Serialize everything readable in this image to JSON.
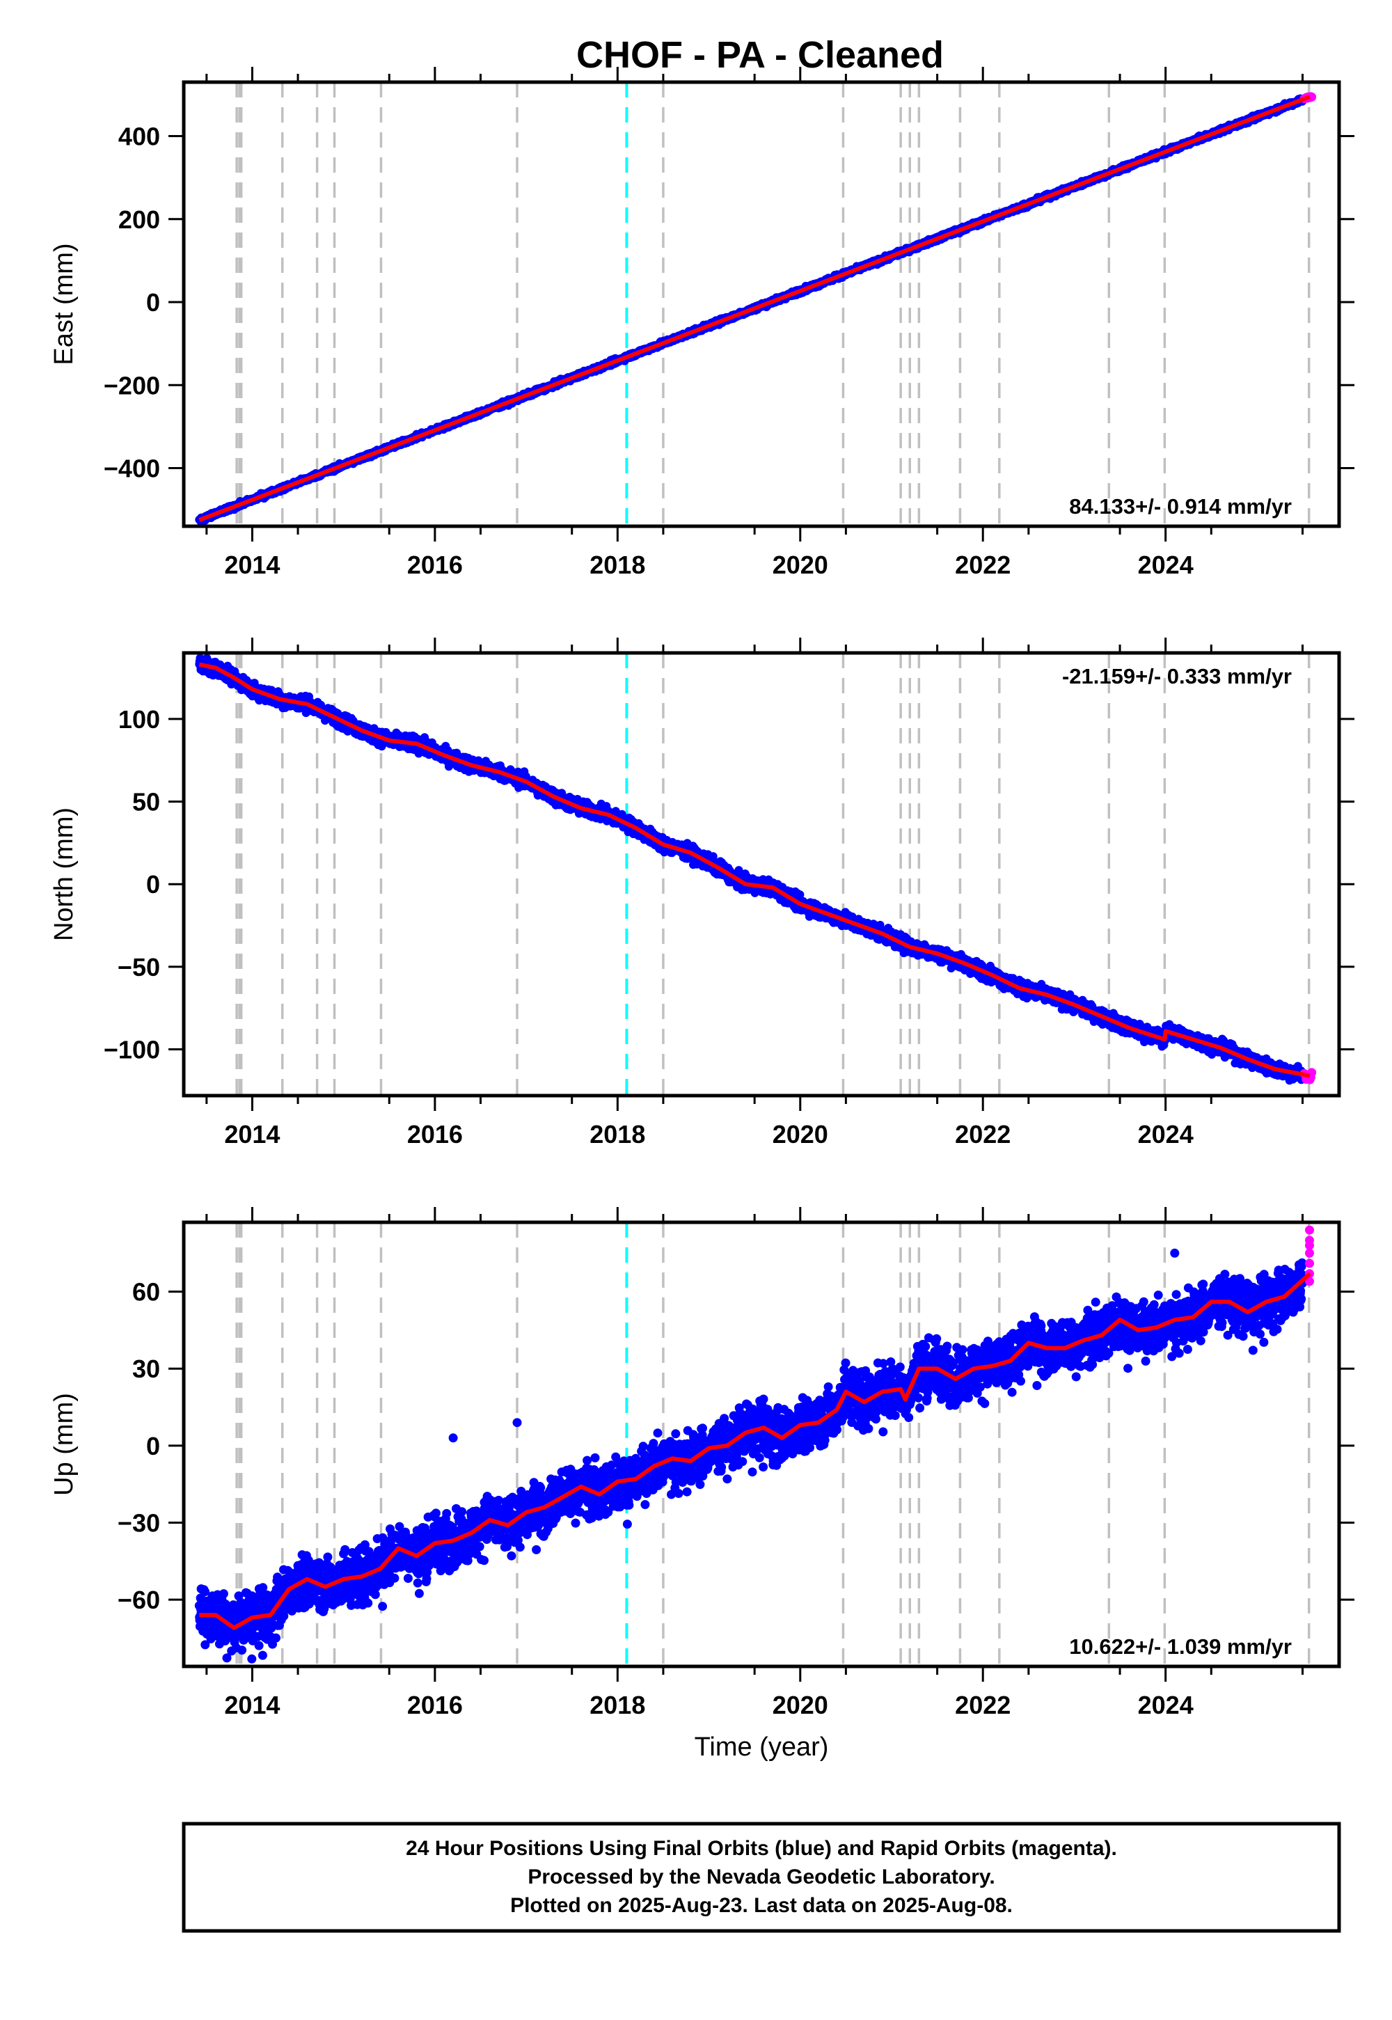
{
  "title": "CHOF  - PA - Cleaned",
  "footer": {
    "lines": [
      "24 Hour Positions Using Final Orbits (blue) and Rapid Orbits (magenta).",
      "Processed by the Nevada Geodetic Laboratory.",
      "Plotted on 2025-Aug-23. Last data on 2025-Aug-08."
    ]
  },
  "colors": {
    "final_orbits": "#0000ff",
    "rapid_orbits": "#ff00ff",
    "fit": "#ff0000",
    "event_gray": "#c0c0c0",
    "event_cyan": "#00ffff"
  },
  "chart_data": [
    {
      "type": "scatter",
      "component": "east",
      "title": "",
      "xlabel": "",
      "ylabel": "East (mm)",
      "xlim": [
        2013.25,
        2025.9
      ],
      "ylim": [
        -540,
        530
      ],
      "x_ticks": [
        2014,
        2016,
        2018,
        2020,
        2022,
        2024
      ],
      "y_ticks": [
        -400,
        -200,
        0,
        200,
        400
      ],
      "y_tick_labels": [
        "−400",
        "−200",
        "0",
        "200",
        "400"
      ],
      "rate_label": "84.133+/- 0.914 mm/yr",
      "rate_label_position": "bottom-right",
      "rate": 84.133,
      "rate_uncertainty": 0.914,
      "trend": {
        "x": [
          2013.42,
          2025.58
        ],
        "y": [
          -525,
          495
        ]
      },
      "scatter_mm": 4,
      "series": [
        {
          "name": "Final Orbits",
          "color": "#0000ff",
          "x_range": [
            2013.42,
            2025.5
          ]
        },
        {
          "name": "Rapid Orbits",
          "color": "#ff00ff",
          "x_range": [
            2025.52,
            2025.6
          ]
        }
      ],
      "events_gray": [
        2013.83,
        2013.86,
        2013.88,
        2014.33,
        2014.71,
        2014.9,
        2015.41,
        2016.9,
        2018.5,
        2020.47,
        2021.1,
        2021.2,
        2021.3,
        2021.75,
        2022.18,
        2023.38,
        2023.99,
        2025.57
      ],
      "events_cyan": [
        2018.1
      ]
    },
    {
      "type": "scatter",
      "component": "north",
      "title": "",
      "xlabel": "",
      "ylabel": "North (mm)",
      "xlim": [
        2013.25,
        2025.9
      ],
      "ylim": [
        -128,
        140
      ],
      "x_ticks": [
        2014,
        2016,
        2018,
        2020,
        2022,
        2024
      ],
      "y_ticks": [
        -100,
        -50,
        0,
        50,
        100
      ],
      "y_tick_labels": [
        "−100",
        "−50",
        "0",
        "50",
        "100"
      ],
      "rate_label": "-21.159+/- 0.333 mm/yr",
      "rate_label_position": "top-right",
      "rate": -21.159,
      "rate_uncertainty": 0.333,
      "fit_curve": {
        "x": [
          2013.42,
          2013.6,
          2013.8,
          2014.0,
          2014.3,
          2014.6,
          2014.9,
          2015.2,
          2015.5,
          2015.8,
          2016.1,
          2016.4,
          2016.7,
          2017.0,
          2017.3,
          2017.6,
          2017.9,
          2018.2,
          2018.5,
          2018.8,
          2019.1,
          2019.4,
          2019.7,
          2020.0,
          2020.3,
          2020.6,
          2020.9,
          2021.2,
          2021.5,
          2021.8,
          2022.1,
          2022.4,
          2022.7,
          2023.0,
          2023.3,
          2023.6,
          2023.99,
          2024.0,
          2024.3,
          2024.6,
          2024.9,
          2025.2,
          2025.58
        ],
        "y": [
          133,
          131,
          125,
          118,
          112,
          109,
          101,
          93,
          87,
          85,
          78,
          72,
          68,
          62,
          53,
          46,
          42,
          34,
          24,
          19,
          10,
          0,
          -2,
          -12,
          -18,
          -24,
          -30,
          -38,
          -42,
          -48,
          -55,
          -63,
          -67,
          -73,
          -80,
          -87,
          -94,
          -89,
          -94,
          -99,
          -106,
          -112,
          -116
        ]
      },
      "scatter_mm": 3,
      "series": [
        {
          "name": "Final Orbits",
          "color": "#0000ff",
          "x_range": [
            2013.42,
            2025.5
          ]
        },
        {
          "name": "Rapid Orbits",
          "color": "#ff00ff",
          "x_range": [
            2025.52,
            2025.6
          ]
        }
      ],
      "events_gray": [
        2013.83,
        2013.86,
        2013.88,
        2014.33,
        2014.71,
        2014.9,
        2015.41,
        2016.9,
        2018.5,
        2020.47,
        2021.1,
        2021.2,
        2021.3,
        2021.75,
        2022.18,
        2023.38,
        2023.99,
        2025.57
      ],
      "events_cyan": [
        2018.1
      ]
    },
    {
      "type": "scatter",
      "component": "up",
      "title": "",
      "xlabel": "Time (year)",
      "ylabel": "Up (mm)",
      "xlim": [
        2013.25,
        2025.9
      ],
      "ylim": [
        -86,
        87
      ],
      "x_ticks": [
        2014,
        2016,
        2018,
        2020,
        2022,
        2024
      ],
      "y_ticks": [
        -60,
        -30,
        0,
        30,
        60
      ],
      "y_tick_labels": [
        "−60",
        "−30",
        "0",
        "30",
        "60"
      ],
      "rate_label": "10.622+/- 1.039 mm/yr",
      "rate_label_position": "bottom-right",
      "rate": 10.622,
      "rate_uncertainty": 1.039,
      "fit_curve": {
        "x": [
          2013.42,
          2013.6,
          2013.8,
          2014.0,
          2014.2,
          2014.4,
          2014.6,
          2014.8,
          2015.0,
          2015.2,
          2015.4,
          2015.6,
          2015.8,
          2016.0,
          2016.2,
          2016.4,
          2016.6,
          2016.8,
          2017.0,
          2017.2,
          2017.4,
          2017.6,
          2017.8,
          2018.0,
          2018.2,
          2018.4,
          2018.6,
          2018.8,
          2019.0,
          2019.2,
          2019.4,
          2019.6,
          2019.8,
          2020.0,
          2020.2,
          2020.4,
          2020.5,
          2020.7,
          2020.9,
          2021.1,
          2021.15,
          2021.3,
          2021.5,
          2021.7,
          2021.9,
          2022.1,
          2022.3,
          2022.5,
          2022.7,
          2022.9,
          2023.1,
          2023.3,
          2023.5,
          2023.7,
          2023.9,
          2024.1,
          2024.3,
          2024.5,
          2024.7,
          2024.9,
          2025.1,
          2025.3,
          2025.58
        ],
        "y": [
          -66,
          -66,
          -71,
          -67,
          -66,
          -56,
          -52,
          -55,
          -52,
          -51,
          -48,
          -40,
          -43,
          -38,
          -37,
          -34,
          -29,
          -31,
          -26,
          -24,
          -20,
          -16,
          -19,
          -14,
          -13,
          -8,
          -5,
          -6,
          -1,
          0,
          5,
          7,
          3,
          8,
          9,
          14,
          21,
          17,
          21,
          22,
          18,
          30,
          30,
          26,
          30,
          31,
          33,
          40,
          38,
          38,
          41,
          43,
          49,
          45,
          46,
          49,
          50,
          56,
          56,
          52,
          56,
          58,
          67
        ]
      },
      "scatter_mm": 7,
      "outliers": {
        "x": [
          2016.9,
          2016.2,
          2018.35,
          2024.1
        ],
        "y": [
          9,
          3,
          -5,
          75
        ]
      },
      "series": [
        {
          "name": "Final Orbits",
          "color": "#0000ff",
          "x_range": [
            2013.42,
            2025.5
          ]
        },
        {
          "name": "Rapid Orbits",
          "color": "#ff00ff",
          "x_range": [
            2025.52,
            2025.6
          ],
          "y_values": [
            64,
            67,
            71,
            75,
            78,
            80,
            84
          ]
        }
      ],
      "events_gray": [
        2013.83,
        2013.86,
        2013.88,
        2014.33,
        2014.71,
        2014.9,
        2015.41,
        2016.9,
        2018.5,
        2020.47,
        2021.1,
        2021.2,
        2021.3,
        2021.75,
        2022.18,
        2023.38,
        2023.99,
        2025.57
      ],
      "events_cyan": [
        2018.1
      ]
    }
  ]
}
